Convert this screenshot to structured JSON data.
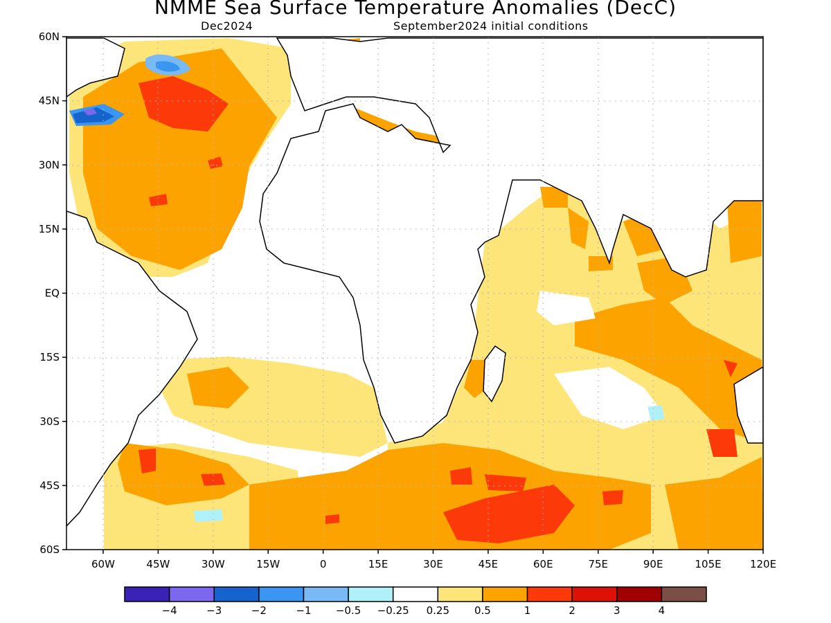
{
  "title": "NMME Sea Surface Temperature Anomalies (DecC)",
  "subtitle_left": "Dec2024",
  "subtitle_right": "September2024 initial conditions",
  "map": {
    "lon_range": [
      -70,
      120
    ],
    "lat_range": [
      -60,
      60
    ],
    "lat_ticks": [
      "60N",
      "45N",
      "30N",
      "15N",
      "EQ",
      "15S",
      "30S",
      "45S",
      "60S"
    ],
    "lon_ticks": [
      "60W",
      "45W",
      "30W",
      "15W",
      "0",
      "15E",
      "30E",
      "45E",
      "60E",
      "75E",
      "90E",
      "105E",
      "120E"
    ],
    "grid": "dotted"
  },
  "legend": {
    "colors": [
      "#3a22b4",
      "#7b68ee",
      "#1663cd",
      "#3a96f0",
      "#78b9f6",
      "#b0f0f8",
      "#ffffff",
      "#fee57a",
      "#fca300",
      "#fc3a09",
      "#dc1206",
      "#a00000",
      "#7b4f45"
    ],
    "labels": [
      "−4",
      "−3",
      "−2",
      "−1",
      "−0.5",
      "−0.25",
      "0.25",
      "0.5",
      "1",
      "2",
      "3",
      "4"
    ]
  }
}
